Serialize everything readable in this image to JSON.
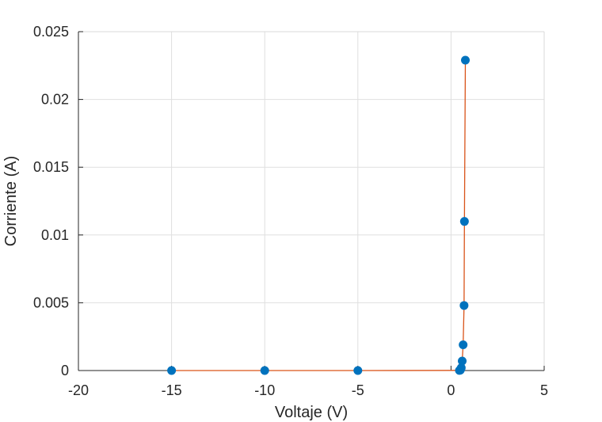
{
  "chart_data": {
    "type": "scatter",
    "title": "",
    "xlabel": "Voltaje (V)",
    "ylabel": "Corriente (A)",
    "xlim": [
      -20,
      5
    ],
    "ylim": [
      0,
      0.025
    ],
    "xticks": [
      -20,
      -15,
      -10,
      -5,
      0,
      5
    ],
    "xtick_labels": [
      "-20",
      "-15",
      "-10",
      "-5",
      "0",
      "5"
    ],
    "yticks": [
      0,
      0.005,
      0.01,
      0.015,
      0.02,
      0.025
    ],
    "ytick_labels": [
      "0",
      "0.005",
      "0.01",
      "0.015",
      "0.02",
      "0.025"
    ],
    "grid": true,
    "legend": "none",
    "series": [
      {
        "x": [
          -15,
          -10,
          -5,
          0.45,
          0.5,
          0.52,
          0.55,
          0.6,
          0.65,
          0.7,
          0.72,
          0.77
        ],
        "y": [
          0,
          0,
          0,
          1e-05,
          3e-05,
          0.0001,
          0.0002,
          0.0007,
          0.0019,
          0.0048,
          0.011,
          0.0229
        ],
        "marker_color": "#0072BD",
        "line_color": "#D95319"
      }
    ]
  }
}
